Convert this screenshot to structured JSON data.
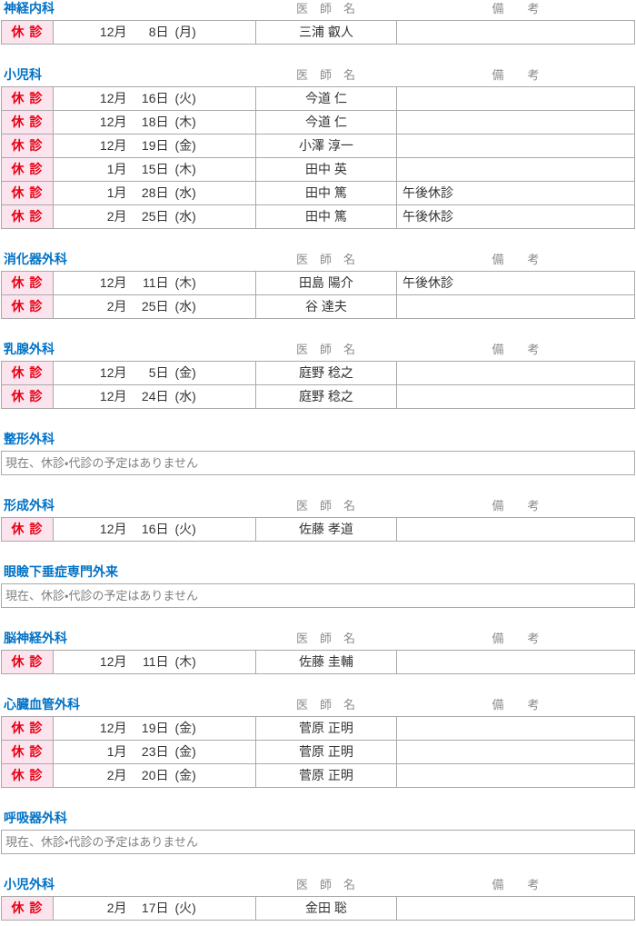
{
  "labels": {
    "doctor_header": "医　師　名",
    "note_header": "備　　考",
    "closed": "休 診",
    "no_schedule": "現在、休診・代診の予定はありません"
  },
  "colors": {
    "department_heading": "#0072c6",
    "closed_text": "#e60012",
    "closed_background": "#fce4ef",
    "column_header_text": "#8c8c8c",
    "table_border": "#a9a9a9"
  },
  "sections": [
    {
      "name": "神経内科",
      "has_table": true,
      "rows": [
        {
          "status": "休 診",
          "month": "12月",
          "day": "8日",
          "weekday": "(月)",
          "doctor": "三浦 叡人",
          "note": ""
        }
      ]
    },
    {
      "name": "小児科",
      "has_table": true,
      "rows": [
        {
          "status": "休 診",
          "month": "12月",
          "day": "16日",
          "weekday": "(火)",
          "doctor": "今道 仁",
          "note": ""
        },
        {
          "status": "休 診",
          "month": "12月",
          "day": "18日",
          "weekday": "(木)",
          "doctor": "今道 仁",
          "note": ""
        },
        {
          "status": "休 診",
          "month": "12月",
          "day": "19日",
          "weekday": "(金)",
          "doctor": "小澤 淳一",
          "note": ""
        },
        {
          "status": "休 診",
          "month": "1月",
          "day": "15日",
          "weekday": "(木)",
          "doctor": "田中 英",
          "note": ""
        },
        {
          "status": "休 診",
          "month": "1月",
          "day": "28日",
          "weekday": "(水)",
          "doctor": "田中 篤",
          "note": "午後休診"
        },
        {
          "status": "休 診",
          "month": "2月",
          "day": "25日",
          "weekday": "(水)",
          "doctor": "田中 篤",
          "note": "午後休診"
        }
      ]
    },
    {
      "name": "消化器外科",
      "has_table": true,
      "rows": [
        {
          "status": "休 診",
          "month": "12月",
          "day": "11日",
          "weekday": "(木)",
          "doctor": "田島 陽介",
          "note": "午後休診"
        },
        {
          "status": "休 診",
          "month": "2月",
          "day": "25日",
          "weekday": "(水)",
          "doctor": "谷 達夫",
          "note": ""
        }
      ]
    },
    {
      "name": "乳腺外科",
      "has_table": true,
      "rows": [
        {
          "status": "休 診",
          "month": "12月",
          "day": "5日",
          "weekday": "(金)",
          "doctor": "庭野 稔之",
          "note": ""
        },
        {
          "status": "休 診",
          "month": "12月",
          "day": "24日",
          "weekday": "(水)",
          "doctor": "庭野 稔之",
          "note": ""
        }
      ]
    },
    {
      "name": "整形外科",
      "has_table": false
    },
    {
      "name": "形成外科",
      "has_table": true,
      "rows": [
        {
          "status": "休 診",
          "month": "12月",
          "day": "16日",
          "weekday": "(火)",
          "doctor": "佐藤 孝道",
          "note": ""
        }
      ]
    },
    {
      "name": "眼瞼下垂症専門外来",
      "has_table": false
    },
    {
      "name": "脳神経外科",
      "has_table": true,
      "rows": [
        {
          "status": "休 診",
          "month": "12月",
          "day": "11日",
          "weekday": "(木)",
          "doctor": "佐藤 圭輔",
          "note": ""
        }
      ]
    },
    {
      "name": "心臓血管外科",
      "has_table": true,
      "rows": [
        {
          "status": "休 診",
          "month": "12月",
          "day": "19日",
          "weekday": "(金)",
          "doctor": "菅原 正明",
          "note": ""
        },
        {
          "status": "休 診",
          "month": "1月",
          "day": "23日",
          "weekday": "(金)",
          "doctor": "菅原 正明",
          "note": ""
        },
        {
          "status": "休 診",
          "month": "2月",
          "day": "20日",
          "weekday": "(金)",
          "doctor": "菅原 正明",
          "note": ""
        }
      ]
    },
    {
      "name": "呼吸器外科",
      "has_table": false
    },
    {
      "name": "小児外科",
      "has_table": true,
      "rows": [
        {
          "status": "休 診",
          "month": "2月",
          "day": "17日",
          "weekday": "(火)",
          "doctor": "金田 聡",
          "note": ""
        }
      ]
    }
  ]
}
